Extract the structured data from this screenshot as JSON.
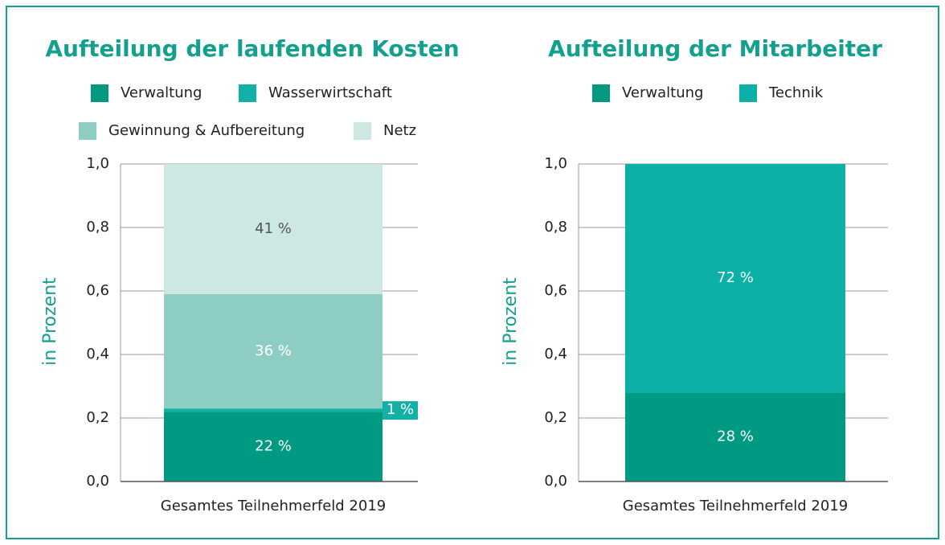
{
  "chart_data": [
    {
      "type": "stacked_bar",
      "title": "Aufteilung der laufenden Kosten",
      "y_label": "in Prozent",
      "categories": [
        "Gesamtes Teilnehmerfeld 2019"
      ],
      "series": [
        {
          "name": "Verwaltung",
          "color": "#009a82",
          "values": [
            0.22
          ],
          "value_labels": [
            "22 %"
          ]
        },
        {
          "name": "Wasserwirtschaft",
          "color": "#13b0a5",
          "values": [
            0.01
          ],
          "value_labels": [
            "1 %"
          ]
        },
        {
          "name": "Gewinnung & Aufbereitung",
          "color": "#8ecdc4",
          "values": [
            0.36
          ],
          "value_labels": [
            "36 %"
          ]
        },
        {
          "name": "Netz",
          "color": "#cde8e3",
          "values": [
            0.41
          ],
          "value_labels": [
            "41 %"
          ]
        }
      ],
      "ylim": [
        0,
        1
      ],
      "yticks": [
        {
          "value": 0,
          "label": "0,0"
        },
        {
          "value": 0.2,
          "label": "0,2"
        },
        {
          "value": 0.4,
          "label": "0,4"
        },
        {
          "value": 0.6,
          "label": "0,6"
        },
        {
          "value": 0.8,
          "label": "0,8"
        },
        {
          "value": 1,
          "label": "1,0"
        }
      ],
      "grid": true
    },
    {
      "type": "stacked_bar",
      "title": "Aufteilung der Mitarbeiter",
      "y_label": "in Prozent",
      "categories": [
        "Gesamtes Teilnehmerfeld 2019"
      ],
      "series": [
        {
          "name": "Verwaltung",
          "color": "#009a82",
          "values": [
            0.28
          ],
          "value_labels": [
            "28 %"
          ]
        },
        {
          "name": "Technik",
          "color": "#0cb0a6",
          "values": [
            0.72
          ],
          "value_labels": [
            "72 %"
          ]
        }
      ],
      "ylim": [
        0,
        1
      ],
      "yticks": [
        {
          "value": 0,
          "label": "0,0"
        },
        {
          "value": 0.2,
          "label": "0,2"
        },
        {
          "value": 0.4,
          "label": "0,4"
        },
        {
          "value": 0.6,
          "label": "0,6"
        },
        {
          "value": 0.8,
          "label": "0,8"
        },
        {
          "value": 1,
          "label": "1,0"
        }
      ],
      "grid": true
    }
  ]
}
